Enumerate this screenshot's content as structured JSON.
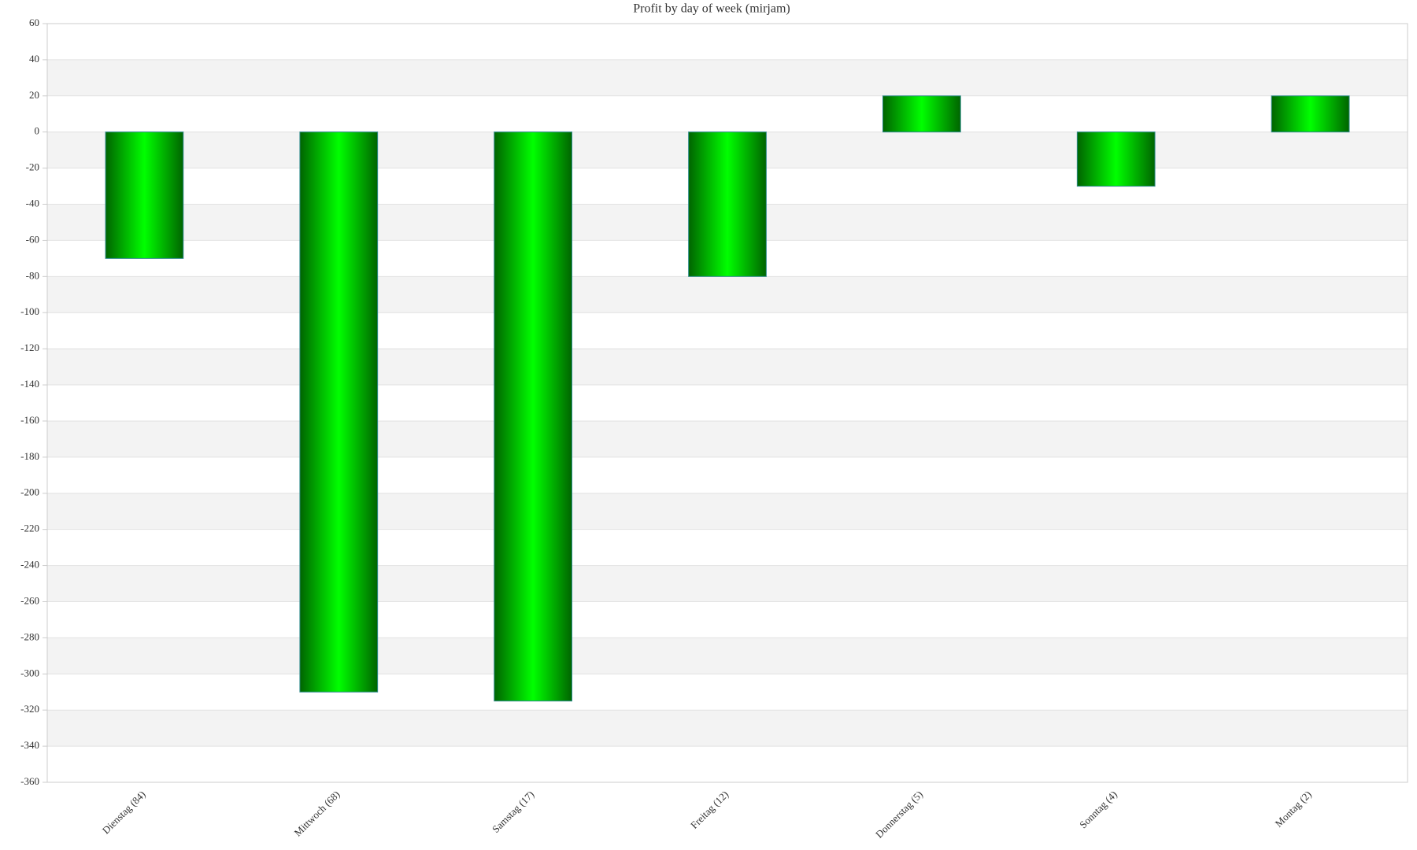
{
  "chart_data": {
    "type": "bar",
    "title": "Profit by day of week  (mirjam)",
    "categories": [
      "Dienstag (84)",
      "Mittwoch (68)",
      "Samstag (17)",
      "Freitag (12)",
      "Donnerstag (5)",
      "Sonntag (4)",
      "Montag (2)"
    ],
    "values": [
      -70,
      -310,
      -315,
      -80,
      20,
      -30,
      20
    ],
    "color": "#00ff00",
    "ylim": [
      -360,
      60
    ],
    "yticks": [
      60,
      40,
      20,
      0,
      -20,
      -40,
      -60,
      -80,
      -100,
      -120,
      -140,
      -160,
      -180,
      -200,
      -220,
      -240,
      -260,
      -280,
      -300,
      -320,
      -340,
      -360
    ],
    "grid": true
  }
}
